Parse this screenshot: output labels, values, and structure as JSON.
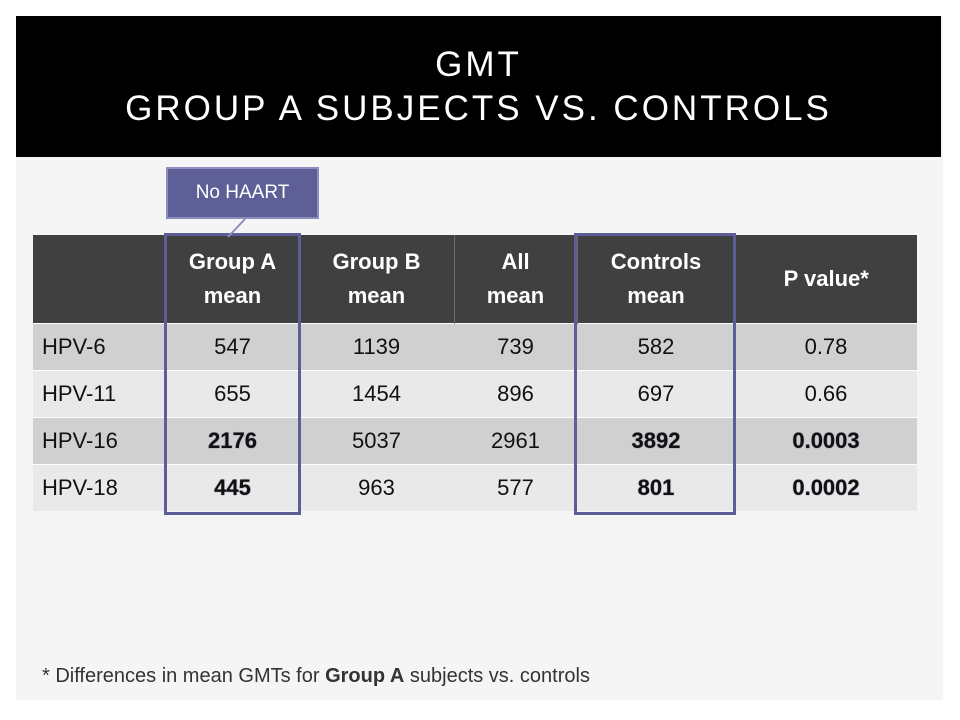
{
  "title": {
    "line1": "GMT",
    "line2": "Group A subjects vs. controls"
  },
  "callout": {
    "label": "No HAART"
  },
  "table": {
    "headers": [
      "",
      "Group A mean",
      "Group B mean",
      "All mean",
      "Controls mean",
      "P value*"
    ],
    "rows": [
      {
        "label": "HPV-6",
        "cells": [
          "547",
          "1139",
          "739",
          "582",
          "0.78"
        ]
      },
      {
        "label": "HPV-11",
        "cells": [
          "655",
          "1454",
          "896",
          "697",
          "0.66"
        ]
      },
      {
        "label": "HPV-16",
        "cells": [
          "2176",
          "5037",
          "2961",
          "3892",
          "0.0003"
        ]
      },
      {
        "label": "HPV-18",
        "cells": [
          "445",
          "963",
          "577",
          "801",
          "0.0002"
        ]
      }
    ]
  },
  "footnote": {
    "prefix": "* Differences in mean GMTs for ",
    "emphasis": "Group A",
    "suffix": " subjects vs. controls"
  },
  "colors": {
    "title_bar": "#000000",
    "header_bg": "#404040",
    "highlight": "#5e5e96",
    "callout_bg": "#5f5f97"
  }
}
